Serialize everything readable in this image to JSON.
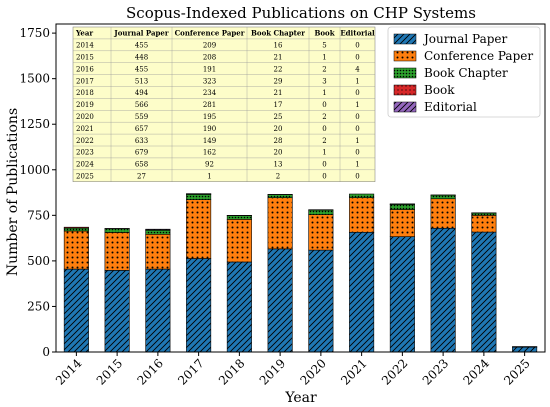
{
  "chart_data": {
    "type": "bar",
    "stacked": true,
    "title": "Scopus-Indexed Publications on CHP Systems",
    "xlabel": "Year",
    "ylabel": "Number of Publications",
    "ylim": [
      0,
      1800
    ],
    "yticks": [
      0,
      250,
      500,
      750,
      1000,
      1250,
      1500,
      1750
    ],
    "grid": false,
    "legend_position": "top-right",
    "categories": [
      "2014",
      "2015",
      "2016",
      "2017",
      "2018",
      "2019",
      "2020",
      "2021",
      "2022",
      "2023",
      "2024",
      "2025"
    ],
    "series": [
      {
        "name": "Journal Paper",
        "color": "#1f77b4",
        "hatch": "diagonal",
        "values": [
          455,
          448,
          455,
          513,
          494,
          566,
          559,
          657,
          633,
          679,
          658,
          27
        ]
      },
      {
        "name": "Conference Paper",
        "color": "#ff7f0e",
        "hatch": "dots",
        "values": [
          209,
          208,
          191,
          323,
          234,
          281,
          195,
          190,
          149,
          162,
          92,
          1
        ]
      },
      {
        "name": "Book Chapter",
        "color": "#2ca02c",
        "hatch": "dense-dots",
        "values": [
          16,
          21,
          22,
          29,
          21,
          17,
          25,
          20,
          28,
          20,
          13,
          2
        ]
      },
      {
        "name": "Book",
        "color": "#d62728",
        "hatch": "dots",
        "values": [
          5,
          1,
          2,
          3,
          1,
          0,
          2,
          0,
          2,
          1,
          0,
          0
        ]
      },
      {
        "name": "Editorial",
        "color": "#9467bd",
        "hatch": "diagonal",
        "values": [
          0,
          0,
          4,
          1,
          0,
          1,
          0,
          0,
          1,
          0,
          1,
          0
        ]
      }
    ],
    "table": {
      "headers": [
        "Year",
        "Journal Paper",
        "Conference Paper",
        "Book Chapter",
        "Book",
        "Editorial"
      ],
      "rows": [
        [
          "2014",
          "455",
          "209",
          "16",
          "5",
          "0"
        ],
        [
          "2015",
          "448",
          "208",
          "21",
          "1",
          "0"
        ],
        [
          "2016",
          "455",
          "191",
          "22",
          "2",
          "4"
        ],
        [
          "2017",
          "513",
          "323",
          "29",
          "3",
          "1"
        ],
        [
          "2018",
          "494",
          "234",
          "21",
          "1",
          "0"
        ],
        [
          "2019",
          "566",
          "281",
          "17",
          "0",
          "1"
        ],
        [
          "2020",
          "559",
          "195",
          "25",
          "2",
          "0"
        ],
        [
          "2021",
          "657",
          "190",
          "20",
          "0",
          "0"
        ],
        [
          "2022",
          "633",
          "149",
          "28",
          "2",
          "1"
        ],
        [
          "2023",
          "679",
          "162",
          "20",
          "1",
          "0"
        ],
        [
          "2024",
          "658",
          "92",
          "13",
          "0",
          "1"
        ],
        [
          "2025",
          "27",
          "1",
          "2",
          "0",
          "0"
        ]
      ]
    }
  }
}
